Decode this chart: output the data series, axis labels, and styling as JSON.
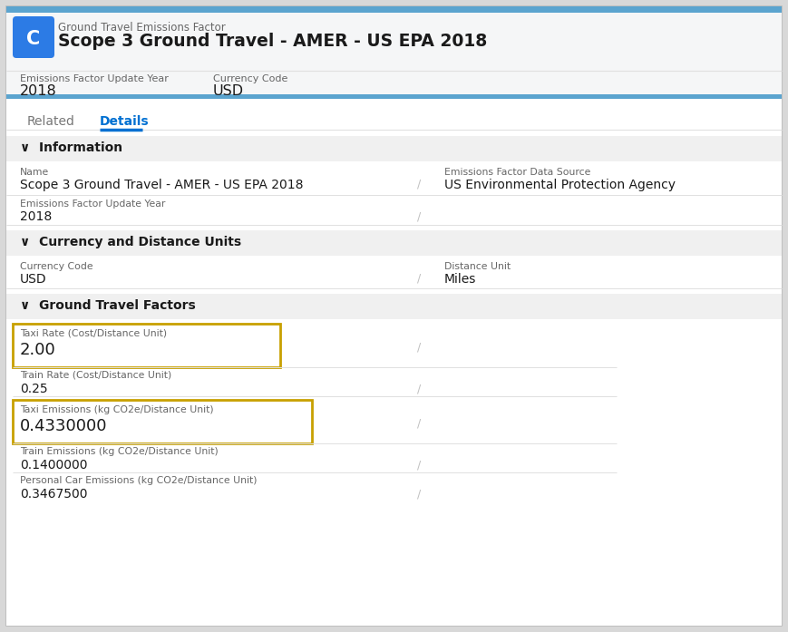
{
  "header_label": "Ground Travel Emissions Factor",
  "header_title": "Scope 3 Ground Travel - AMER - US EPA 2018",
  "header_field1_label": "Emissions Factor Update Year",
  "header_field1_value": "2018",
  "header_field2_label": "Currency Code",
  "header_field2_value": "USD",
  "tab_related": "Related",
  "tab_details": "Details",
  "section1_title": "Information",
  "info_name_label": "Name",
  "info_name_value": "Scope 3 Ground Travel - AMER - US EPA 2018",
  "info_source_label": "Emissions Factor Data Source",
  "info_source_value": "US Environmental Protection Agency",
  "info_year_label": "Emissions Factor Update Year",
  "info_year_value": "2018",
  "section2_title": "Currency and Distance Units",
  "currency_label": "Currency Code",
  "currency_value": "USD",
  "distance_label": "Distance Unit",
  "distance_value": "Miles",
  "section3_title": "Ground Travel Factors",
  "taxi_rate_label": "Taxi Rate (Cost/Distance Unit)",
  "taxi_rate_value": "2.00",
  "train_rate_label": "Train Rate (Cost/Distance Unit)",
  "train_rate_value": "0.25",
  "taxi_emissions_label": "Taxi Emissions (kg CO2e/Distance Unit)",
  "taxi_emissions_value": "0.4330000",
  "train_emissions_label": "Train Emissions (kg CO2e/Distance Unit)",
  "train_emissions_value": "0.1400000",
  "car_emissions_label": "Personal Car Emissions (kg CO2e/Distance Unit)",
  "car_emissions_value": "0.3467500",
  "highlight_border_color": "#c8a000",
  "section_bg": "#f0f0f0",
  "bg_color": "#ffffff",
  "outer_bg": "#d8d8d8",
  "text_dark": "#1a1a1a",
  "text_label": "#666666",
  "tab_active_color": "#0070d2",
  "header_stripe_color": "#5ba4cf",
  "icon_color": "#2c7be5",
  "edit_slash_color": "#c0c0c0",
  "divider_color": "#e0e0e0"
}
